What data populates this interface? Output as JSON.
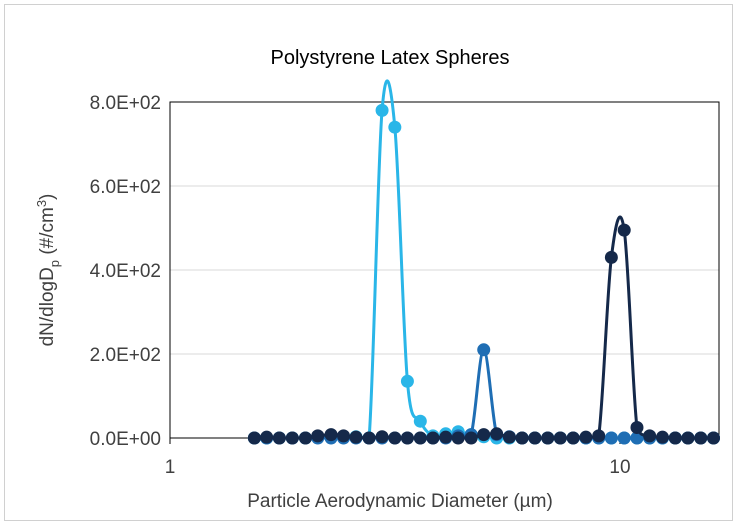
{
  "chart_data": {
    "type": "line",
    "title": "Polystyrene Latex Spheres",
    "xlabel": "Particle Aerodynamic Diameter (µm)",
    "ylabel_parts": [
      "dN/dlogD",
      "p",
      " (#/cm",
      "3",
      ")"
    ],
    "x_scale": "log",
    "xlim": [
      1,
      16.6
    ],
    "ylim": [
      0,
      800
    ],
    "x_ticks": [
      1,
      10
    ],
    "x_tick_labels": [
      "1",
      "10"
    ],
    "y_ticks": [
      0,
      200,
      400,
      600,
      800
    ],
    "y_tick_labels": [
      "0.0E+00",
      "2.0E+02",
      "4.0E+02",
      "6.0E+02",
      "8.0E+02"
    ],
    "grid": "horizontal",
    "legend": "none",
    "x": [
      1.54,
      1.64,
      1.75,
      1.87,
      2.0,
      2.13,
      2.28,
      2.43,
      2.59,
      2.77,
      2.96,
      3.16,
      3.37,
      3.6,
      3.84,
      4.1,
      4.37,
      4.67,
      4.98,
      5.32,
      5.68,
      6.06,
      6.47,
      6.91,
      7.37,
      7.87,
      8.4,
      8.97,
      9.57,
      10.22,
      10.91,
      11.64,
      12.43,
      13.27,
      14.16,
      15.12,
      16.14
    ],
    "series": [
      {
        "color": "#2ab6e8",
        "values": [
          0,
          0,
          0,
          0,
          0,
          2,
          3,
          2,
          3,
          0,
          780,
          740,
          135,
          40,
          5,
          10,
          15,
          8,
          3,
          0,
          0,
          0,
          0,
          0,
          0,
          0,
          0,
          0,
          0,
          0,
          0,
          0,
          0,
          0,
          0,
          0,
          0
        ]
      },
      {
        "color": "#1f6eb4",
        "values": [
          0,
          0,
          0,
          0,
          0,
          0,
          0,
          0,
          0,
          0,
          0,
          0,
          0,
          0,
          0,
          0,
          5,
          8,
          210,
          8,
          3,
          0,
          0,
          0,
          0,
          0,
          0,
          0,
          0,
          0,
          0,
          0,
          0,
          0,
          0,
          0,
          0
        ]
      },
      {
        "color": "#15294a",
        "values": [
          0,
          2,
          0,
          0,
          0,
          5,
          8,
          5,
          2,
          0,
          3,
          0,
          0,
          0,
          0,
          2,
          0,
          0,
          8,
          10,
          2,
          0,
          0,
          0,
          0,
          0,
          2,
          5,
          430,
          495,
          25,
          5,
          2,
          0,
          0,
          0,
          0
        ]
      }
    ]
  }
}
